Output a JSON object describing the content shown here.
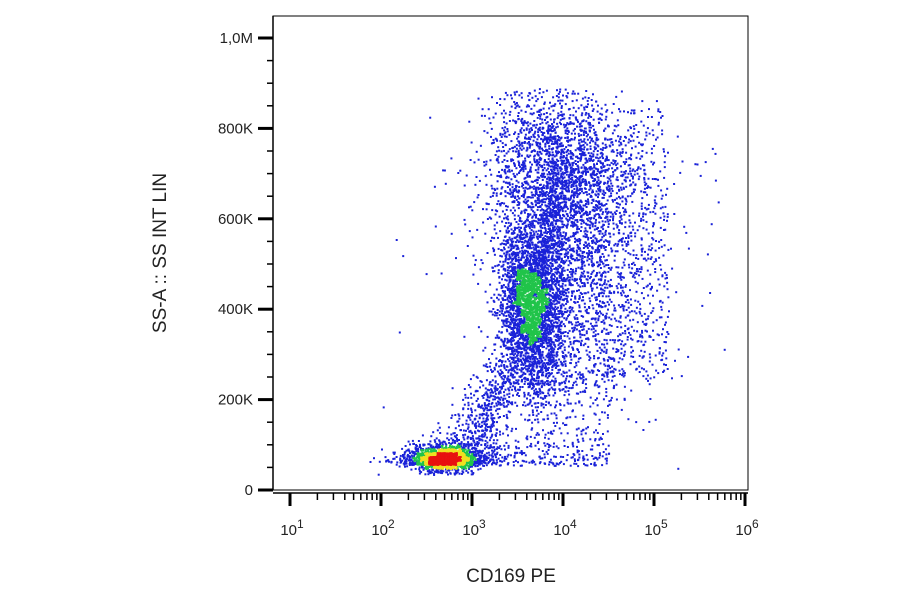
{
  "chart_data": {
    "type": "scatter",
    "style": "density dot plot (flow cytometry), pseudocolor blue → green → yellow → red",
    "xlabel": "CD169 PE",
    "ylabel": "SS-A :: SS INT LIN",
    "x_scale": "log",
    "y_scale": "linear",
    "xlim": [
      10,
      1000000
    ],
    "ylim": [
      0,
      1000000
    ],
    "x_ticks": [
      {
        "base": "10",
        "exp": "1",
        "value": 10
      },
      {
        "base": "10",
        "exp": "2",
        "value": 100
      },
      {
        "base": "10",
        "exp": "3",
        "value": 1000
      },
      {
        "base": "10",
        "exp": "4",
        "value": 10000
      },
      {
        "base": "10",
        "exp": "5",
        "value": 100000
      },
      {
        "base": "10",
        "exp": "6",
        "value": 1000000
      }
    ],
    "y_ticks": [
      {
        "label": "0",
        "value": 0
      },
      {
        "label": "200K",
        "value": 200000
      },
      {
        "label": "400K",
        "value": 400000
      },
      {
        "label": "600K",
        "value": 600000
      },
      {
        "label": "800K",
        "value": 800000
      },
      {
        "label": "1,0M",
        "value": 1000000
      }
    ],
    "populations": [
      {
        "x_median": 500,
        "y_median": 70000,
        "density": "very high",
        "x_range": [
          200,
          1000
        ],
        "y_range": [
          40000,
          100000
        ]
      },
      {
        "x_median": 5000,
        "y_median": 430000,
        "density": "high",
        "x_range": [
          1500,
          80000
        ],
        "y_range": [
          150000,
          880000
        ]
      }
    ],
    "grid": false,
    "legend": "none",
    "colors": {
      "low": "#1a22d8",
      "mid": "#21c44a",
      "high_mid": "#f0e020",
      "high": "#e81010",
      "axis": "#000000"
    }
  }
}
